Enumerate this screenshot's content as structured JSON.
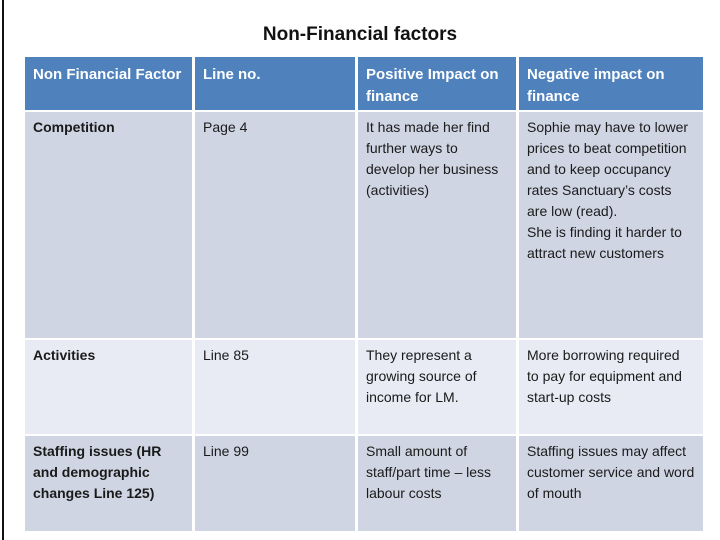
{
  "title": "Non-Financial factors",
  "colors": {
    "header_bg": "#4F81BD",
    "header_text": "#FFFFFF",
    "band_dark": "#CFD5E3",
    "band_light": "#E8EBF4",
    "body_text": "#1A1A1A"
  },
  "table": {
    "headers": [
      "Non Financial Factor",
      "Line no.",
      "Positive Impact on finance",
      "Negative impact on finance"
    ],
    "rows": [
      {
        "factor": "Competition",
        "line": "Page 4",
        "positive": "It has made her find further ways to develop her business (activities)",
        "negative": "Sophie may have to lower prices to beat competition and to keep occupancy rates Sanctuary’s costs are low (read).\nShe is finding it harder to attract new customers"
      },
      {
        "factor": "Activities",
        "line": "Line 85",
        "positive": "They represent a growing source of income for LM.",
        "negative": "More borrowing required to pay for equipment and start-up costs"
      },
      {
        "factor": "Staffing issues (HR and demographic changes Line 125)",
        "line": "Line 99",
        "positive": "Small amount of staff/part time – less labour costs",
        "negative": "Staffing issues may affect customer service and word of mouth"
      }
    ]
  }
}
